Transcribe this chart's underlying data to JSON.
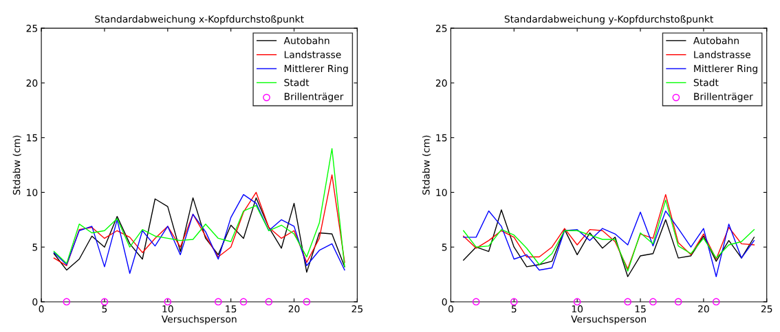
{
  "chart_data": [
    {
      "type": "line",
      "title": "Standardabweichung x-Kopfdurchstoßpunkt",
      "xlabel": "Versuchsperson",
      "ylabel": "Stdabw (cm)",
      "x": [
        1,
        2,
        3,
        4,
        5,
        6,
        7,
        8,
        9,
        10,
        11,
        12,
        13,
        14,
        15,
        16,
        17,
        18,
        19,
        20,
        21,
        22,
        23,
        24
      ],
      "xlim": [
        0,
        25
      ],
      "xticks": [
        0,
        5,
        10,
        15,
        20,
        25
      ],
      "ylim": [
        0,
        25
      ],
      "yticks": [
        0,
        5,
        10,
        15,
        20,
        25
      ],
      "grid": false,
      "legend": "top right",
      "series": [
        {
          "name": "Autobahn",
          "color": "#000000",
          "values": [
            4.4,
            2.9,
            3.9,
            6.0,
            5.0,
            7.8,
            5.3,
            3.9,
            9.4,
            8.7,
            4.6,
            9.5,
            5.8,
            4.3,
            7.0,
            5.8,
            9.5,
            6.8,
            4.9,
            9.0,
            2.7,
            6.3,
            6.2,
            3.2
          ]
        },
        {
          "name": "Landstrasse",
          "color": "#ff0000",
          "values": [
            4.0,
            3.3,
            6.6,
            6.8,
            5.8,
            6.5,
            5.9,
            4.5,
            5.8,
            6.9,
            5.0,
            8.0,
            6.0,
            4.1,
            5.0,
            8.2,
            10.0,
            6.8,
            5.8,
            6.5,
            3.6,
            5.8,
            11.6,
            3.6
          ]
        },
        {
          "name": "Mittlerer Ring",
          "color": "#0000ff",
          "values": [
            4.5,
            3.4,
            6.5,
            6.9,
            3.2,
            7.5,
            2.6,
            6.5,
            5.1,
            6.9,
            4.3,
            8.0,
            6.4,
            3.9,
            7.7,
            9.8,
            9.0,
            6.5,
            7.5,
            6.9,
            3.3,
            4.7,
            5.3,
            2.9
          ]
        },
        {
          "name": "Stadt",
          "color": "#00ff00",
          "values": [
            4.6,
            3.5,
            7.1,
            6.3,
            6.5,
            7.6,
            5.0,
            6.6,
            6.0,
            5.8,
            5.6,
            5.7,
            7.1,
            5.8,
            5.5,
            8.3,
            8.8,
            6.5,
            7.0,
            6.2,
            4.1,
            7.2,
            14.0,
            3.2
          ]
        },
        {
          "name": "Brillenträger",
          "type": "scatter",
          "marker": "circle",
          "color": "#ff00ff",
          "x": [
            2,
            5,
            10,
            14,
            16,
            18,
            21
          ],
          "values": [
            0,
            0,
            0,
            0,
            0,
            0,
            0
          ]
        }
      ]
    },
    {
      "type": "line",
      "title": "Standardabweichung y-Kopfdurchstoßpunkt",
      "xlabel": "Versuchsperson",
      "ylabel": "Stdabw (cm)",
      "x": [
        1,
        2,
        3,
        4,
        5,
        6,
        7,
        8,
        9,
        10,
        11,
        12,
        13,
        14,
        15,
        16,
        17,
        18,
        19,
        20,
        21,
        22,
        23,
        24
      ],
      "xlim": [
        0,
        25
      ],
      "xticks": [
        0,
        5,
        10,
        15,
        20,
        25
      ],
      "ylim": [
        0,
        25
      ],
      "yticks": [
        0,
        5,
        10,
        15,
        20,
        25
      ],
      "grid": false,
      "legend": "top right",
      "series": [
        {
          "name": "Autobahn",
          "color": "#000000",
          "values": [
            3.8,
            5.0,
            4.6,
            8.4,
            5.0,
            3.2,
            3.4,
            3.7,
            6.6,
            4.3,
            6.3,
            4.9,
            5.9,
            2.3,
            4.2,
            4.4,
            7.5,
            4.0,
            4.2,
            6.0,
            3.7,
            5.6,
            4.0,
            5.9
          ]
        },
        {
          "name": "Landstrasse",
          "color": "#ff0000",
          "values": [
            6.0,
            4.9,
            5.6,
            6.5,
            5.9,
            4.1,
            4.1,
            5.0,
            6.7,
            5.2,
            6.6,
            6.5,
            5.5,
            3.0,
            6.2,
            5.8,
            9.8,
            5.4,
            4.3,
            6.2,
            3.9,
            6.8,
            5.3,
            5.2
          ]
        },
        {
          "name": "Mittlerer Ring",
          "color": "#0000ff",
          "values": [
            5.9,
            5.9,
            8.3,
            6.9,
            3.9,
            4.3,
            2.9,
            3.1,
            6.5,
            6.6,
            5.6,
            6.7,
            6.2,
            5.2,
            8.2,
            5.1,
            8.3,
            6.7,
            5.0,
            6.7,
            2.3,
            7.1,
            4.0,
            5.6
          ]
        },
        {
          "name": "Stadt",
          "color": "#00ff00",
          "values": [
            6.5,
            5.0,
            5.1,
            6.6,
            6.1,
            4.9,
            3.4,
            4.4,
            6.5,
            6.5,
            6.1,
            5.7,
            5.7,
            2.8,
            6.3,
            5.3,
            9.3,
            5.1,
            4.4,
            5.8,
            4.0,
            5.2,
            5.5,
            6.6
          ]
        },
        {
          "name": "Brillenträger",
          "type": "scatter",
          "marker": "circle",
          "color": "#ff00ff",
          "x": [
            2,
            5,
            10,
            14,
            16,
            18,
            21
          ],
          "values": [
            0,
            0,
            0,
            0,
            0,
            0,
            0
          ]
        }
      ]
    }
  ]
}
